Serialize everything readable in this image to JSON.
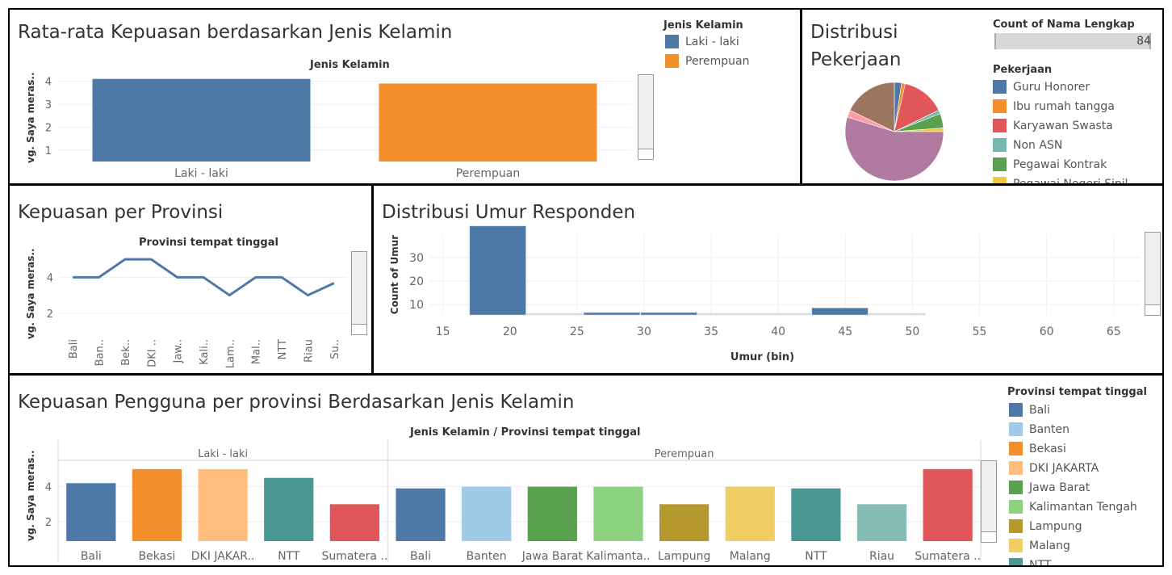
{
  "colors": {
    "blue": "#4e79a7",
    "orange": "#f28e2b",
    "red": "#e15759",
    "teal": "#76b7b2",
    "green": "#59a14f",
    "yellow": "#edc948",
    "purple": "#b07aa1",
    "pink": "#ff9da7",
    "brown": "#9c755f",
    "grey": "#bab0ac",
    "lightblue": "#a0cbe8",
    "lightorange": "#ffbe7d",
    "lightgreen": "#8cd17d",
    "olive": "#b6992d",
    "paleyellow": "#f1ce63",
    "tealdark": "#499894",
    "paleteal": "#86bcb6"
  },
  "panel1": {
    "title": "Rata-rata Kepuasan berdasarkan Jenis Kelamin",
    "subtitle": "Jenis Kelamin",
    "legend_title": "Jenis Kelamin",
    "legend": [
      {
        "label": "Laki - laki",
        "color": "#4e79a7"
      },
      {
        "label": "Perempuan",
        "color": "#f28e2b"
      }
    ],
    "chart_data": {
      "type": "bar",
      "title": "Rata-rata Kepuasan berdasarkan Jenis Kelamin",
      "xlabel": "Jenis Kelamin",
      "ylabel": "vg. Saya meras..",
      "categories": [
        "Laki - laki",
        "Perempuan"
      ],
      "values": [
        4.1,
        3.9
      ],
      "colors": [
        "#4e79a7",
        "#f28e2b"
      ],
      "yticks": [
        1,
        2,
        3,
        4
      ],
      "ylim": [
        0.5,
        4.3
      ]
    }
  },
  "panel2": {
    "title_line1": "Distribusi",
    "title_line2": "Pekerjaan",
    "size_legend_title": "Count of Nama Lengkap",
    "size_legend_value": "84",
    "legend_title": "Pekerjaan",
    "legend": [
      {
        "label": "Guru Honorer",
        "color": "#4e79a7"
      },
      {
        "label": "Ibu rumah tangga",
        "color": "#f28e2b"
      },
      {
        "label": "Karyawan Swasta",
        "color": "#e15759"
      },
      {
        "label": "Non ASN",
        "color": "#76b7b2"
      },
      {
        "label": "Pegawai Kontrak",
        "color": "#59a14f"
      },
      {
        "label": "Pegawai Negeri Sipil",
        "color": "#edc948"
      }
    ],
    "chart_data": {
      "type": "pie",
      "title": "Distribusi Pekerjaan",
      "slices": [
        {
          "label": "Guru Honorer",
          "value": 2,
          "color": "#4e79a7"
        },
        {
          "label": "Ibu rumah tangga",
          "value": 1,
          "color": "#f28e2b"
        },
        {
          "label": "Karyawan Swasta",
          "value": 12,
          "color": "#e15759"
        },
        {
          "label": "Non ASN",
          "value": 1,
          "color": "#76b7b2"
        },
        {
          "label": "Pegawai Kontrak",
          "value": 4,
          "color": "#59a14f"
        },
        {
          "label": "Pegawai Negeri Sipil",
          "value": 1,
          "color": "#edc948"
        },
        {
          "label": "",
          "value": 46,
          "color": "#b07aa1"
        },
        {
          "label": "",
          "value": 2,
          "color": "#ff9da7"
        },
        {
          "label": "",
          "value": 15,
          "color": "#9c755f"
        }
      ]
    }
  },
  "panel3": {
    "title": "Kepuasan per Provinsi",
    "subtitle": "Provinsi tempat tinggal",
    "chart_data": {
      "type": "line",
      "title": "Kepuasan per Provinsi",
      "xlabel": "Provinsi tempat tinggal",
      "ylabel": "vg. Saya meras..",
      "categories": [
        "Bali",
        "Ban..",
        "Bek..",
        "DKI ..",
        "Jaw..",
        "Kali..",
        "Lam..",
        "Mal..",
        "NTT",
        "Riau",
        "Su.."
      ],
      "values": [
        4.0,
        4.0,
        5.0,
        5.0,
        4.0,
        4.0,
        3.0,
        4.0,
        4.0,
        3.0,
        3.67
      ],
      "yticks": [
        2,
        4
      ],
      "ylim": [
        1,
        5.5
      ],
      "color": "#4e79a7"
    }
  },
  "panel4": {
    "title": "Distribusi Umur Responden",
    "chart_data": {
      "type": "bar",
      "title": "Distribusi Umur Responden",
      "xlabel": "Umur (bin)",
      "ylabel": "Count of Umur",
      "bins": [
        17,
        21.25,
        25.5,
        29.75,
        34,
        38.25,
        42.5,
        46.75
      ],
      "bin_width": 4.25,
      "values": [
        38,
        0,
        1,
        1,
        0,
        0,
        3,
        0
      ],
      "xticks": [
        15,
        20,
        25,
        30,
        35,
        40,
        45,
        50,
        55,
        60,
        65
      ],
      "yticks": [
        10,
        20,
        30
      ],
      "xlim": [
        14,
        67
      ],
      "ylim": [
        5.5,
        40
      ],
      "color": "#4e79a7"
    }
  },
  "panel5": {
    "title": "Kepuasan Pengguna per provinsi Berdasarkan Jenis Kelamin",
    "subtitle": "Jenis Kelamin  /  Provinsi tempat tinggal",
    "legend_title": "Provinsi tempat tinggal",
    "legend": [
      {
        "label": "Bali",
        "color": "#4e79a7"
      },
      {
        "label": "Banten",
        "color": "#a0cbe8"
      },
      {
        "label": "Bekasi",
        "color": "#f28e2b"
      },
      {
        "label": "DKI JAKARTA",
        "color": "#ffbe7d"
      },
      {
        "label": "Jawa Barat",
        "color": "#59a14f"
      },
      {
        "label": "Kalimantan Tengah",
        "color": "#8cd17d"
      },
      {
        "label": "Lampung",
        "color": "#b6992d"
      },
      {
        "label": "Malang",
        "color": "#f1ce63"
      },
      {
        "label": "NTT",
        "color": "#499894"
      }
    ],
    "chart_data": {
      "type": "bar",
      "title": "Kepuasan Pengguna per provinsi Berdasarkan Jenis Kelamin",
      "ylabel": "vg. Saya meras..",
      "yticks": [
        2,
        4
      ],
      "ylim": [
        0.9,
        5.5
      ],
      "groups": [
        {
          "name": "Laki - laki",
          "categories": [
            "Bali",
            "Bekasi",
            "DKI JAKAR..",
            "NTT",
            "Sumatera .."
          ],
          "values": [
            4.2,
            5.0,
            5.0,
            4.5,
            3.0
          ],
          "colors": [
            "#4e79a7",
            "#f28e2b",
            "#ffbe7d",
            "#499894",
            "#e15759"
          ]
        },
        {
          "name": "Perempuan",
          "categories": [
            "Bali",
            "Banten",
            "Jawa Barat",
            "Kalimanta..",
            "Lampung",
            "Malang",
            "NTT",
            "Riau",
            "Sumatera .."
          ],
          "values": [
            3.9,
            4.0,
            4.0,
            4.0,
            3.0,
            4.0,
            3.9,
            3.0,
            5.0
          ],
          "colors": [
            "#4e79a7",
            "#a0cbe8",
            "#59a14f",
            "#8cd17d",
            "#b6992d",
            "#f1ce63",
            "#499894",
            "#86bcb6",
            "#e15759"
          ]
        }
      ]
    }
  }
}
